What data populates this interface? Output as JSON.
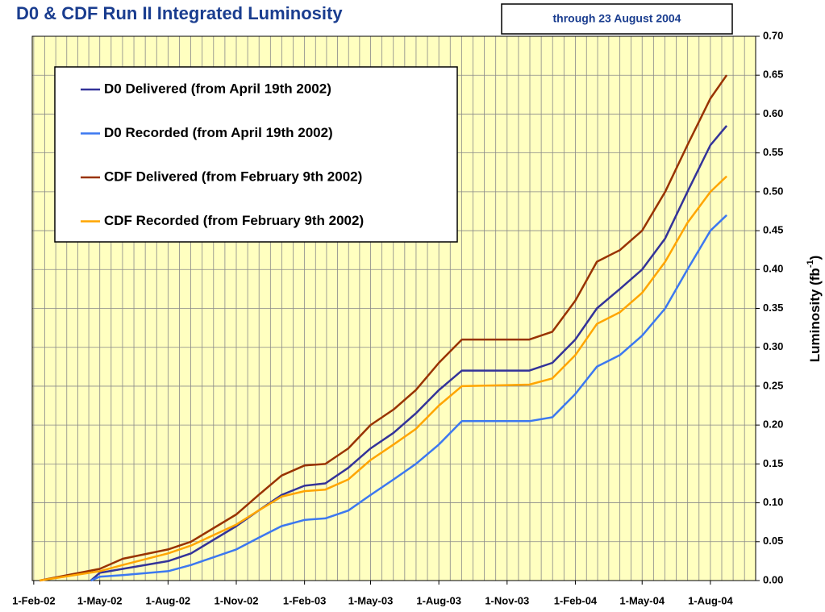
{
  "chart_data": {
    "type": "line",
    "title": "D0 & CDF Run II Integrated Luminosity",
    "annotation": "through 23 August 2004",
    "ylabel": [
      "Luminosity (fb",
      "-1",
      ")"
    ],
    "xlim": [
      "2002-01-30",
      "2004-10-01"
    ],
    "ylim": [
      0,
      0.7
    ],
    "xticks": [
      {
        "value": "2002-02-01",
        "label": "1-Feb-02"
      },
      {
        "value": "2002-05-01",
        "label": "1-May-02"
      },
      {
        "value": "2002-08-01",
        "label": "1-Aug-02"
      },
      {
        "value": "2002-11-01",
        "label": "1-Nov-02"
      },
      {
        "value": "2003-02-01",
        "label": "1-Feb-03"
      },
      {
        "value": "2003-05-01",
        "label": "1-May-03"
      },
      {
        "value": "2003-08-01",
        "label": "1-Aug-03"
      },
      {
        "value": "2003-11-01",
        "label": "1-Nov-03"
      },
      {
        "value": "2004-02-01",
        "label": "1-Feb-04"
      },
      {
        "value": "2004-05-01",
        "label": "1-May-04"
      },
      {
        "value": "2004-08-01",
        "label": "1-Aug-04"
      }
    ],
    "yticks": [
      {
        "value": 0,
        "label": "0.00"
      },
      {
        "value": 0.05,
        "label": "0.05"
      },
      {
        "value": 0.1,
        "label": "0.10"
      },
      {
        "value": 0.15,
        "label": "0.15"
      },
      {
        "value": 0.2,
        "label": "0.20"
      },
      {
        "value": 0.25,
        "label": "0.25"
      },
      {
        "value": 0.3,
        "label": "0.30"
      },
      {
        "value": 0.35,
        "label": "0.35"
      },
      {
        "value": 0.4,
        "label": "0.40"
      },
      {
        "value": 0.45,
        "label": "0.45"
      },
      {
        "value": 0.5,
        "label": "0.50"
      },
      {
        "value": 0.55,
        "label": "0.55"
      },
      {
        "value": 0.6,
        "label": "0.60"
      },
      {
        "value": 0.65,
        "label": "0.65"
      },
      {
        "value": 0.7,
        "label": "0.70"
      }
    ],
    "grid": true,
    "series": [
      {
        "name": "D0 Delivered (from April 19th 2002)",
        "color": "#333399",
        "x": [
          "2002-04-19",
          "2002-05-01",
          "2002-06-01",
          "2002-08-01",
          "2002-09-01",
          "2002-11-01",
          "2002-12-01",
          "2003-01-01",
          "2003-02-01",
          "2003-03-01",
          "2003-04-01",
          "2003-05-01",
          "2003-06-01",
          "2003-07-01",
          "2003-08-01",
          "2003-09-01",
          "2003-12-01",
          "2004-01-01",
          "2004-02-01",
          "2004-03-01",
          "2004-04-01",
          "2004-05-01",
          "2004-06-01",
          "2004-07-01",
          "2004-08-01",
          "2004-08-23"
        ],
        "values": [
          0,
          0.01,
          0.015,
          0.025,
          0.035,
          0.07,
          0.09,
          0.11,
          0.122,
          0.125,
          0.145,
          0.17,
          0.19,
          0.215,
          0.245,
          0.27,
          0.27,
          0.28,
          0.31,
          0.35,
          0.375,
          0.4,
          0.44,
          0.5,
          0.56,
          0.585
        ]
      },
      {
        "name": "D0 Recorded (from April 19th 2002)",
        "color": "#3c78f0",
        "x": [
          "2002-04-19",
          "2002-05-01",
          "2002-06-01",
          "2002-08-01",
          "2002-09-01",
          "2002-11-01",
          "2002-12-01",
          "2003-01-01",
          "2003-02-01",
          "2003-03-01",
          "2003-04-01",
          "2003-05-01",
          "2003-06-01",
          "2003-07-01",
          "2003-08-01",
          "2003-09-01",
          "2003-12-01",
          "2004-01-01",
          "2004-02-01",
          "2004-03-01",
          "2004-04-01",
          "2004-05-01",
          "2004-06-01",
          "2004-07-01",
          "2004-08-01",
          "2004-08-23"
        ],
        "values": [
          0,
          0.005,
          0.007,
          0.012,
          0.02,
          0.04,
          0.055,
          0.07,
          0.078,
          0.08,
          0.09,
          0.11,
          0.13,
          0.15,
          0.175,
          0.205,
          0.205,
          0.21,
          0.24,
          0.275,
          0.29,
          0.315,
          0.35,
          0.4,
          0.45,
          0.47
        ]
      },
      {
        "name": "CDF Delivered (from February 9th 2002)",
        "color": "#993300",
        "x": [
          "2002-02-09",
          "2002-05-01",
          "2002-06-01",
          "2002-08-01",
          "2002-09-01",
          "2002-11-01",
          "2002-12-01",
          "2003-01-01",
          "2003-02-01",
          "2003-03-01",
          "2003-04-01",
          "2003-05-01",
          "2003-06-01",
          "2003-07-01",
          "2003-08-01",
          "2003-09-01",
          "2003-12-01",
          "2004-01-01",
          "2004-02-01",
          "2004-03-01",
          "2004-04-01",
          "2004-05-01",
          "2004-06-01",
          "2004-07-01",
          "2004-08-01",
          "2004-08-23"
        ],
        "values": [
          0,
          0.015,
          0.028,
          0.04,
          0.05,
          0.085,
          0.11,
          0.135,
          0.148,
          0.15,
          0.17,
          0.2,
          0.22,
          0.245,
          0.28,
          0.31,
          0.31,
          0.32,
          0.36,
          0.41,
          0.425,
          0.45,
          0.5,
          0.56,
          0.62,
          0.65
        ]
      },
      {
        "name": "CDF Recorded (from February 9th 2002)",
        "color": "#ffa500",
        "x": [
          "2002-02-09",
          "2002-05-01",
          "2002-06-01",
          "2002-08-01",
          "2002-09-01",
          "2002-11-01",
          "2002-12-01",
          "2003-01-01",
          "2003-02-01",
          "2003-03-01",
          "2003-04-01",
          "2003-05-01",
          "2003-06-01",
          "2003-07-01",
          "2003-08-01",
          "2003-09-01",
          "2003-12-01",
          "2004-01-01",
          "2004-02-01",
          "2004-03-01",
          "2004-04-01",
          "2004-05-01",
          "2004-06-01",
          "2004-07-01",
          "2004-08-01",
          "2004-08-23"
        ],
        "values": [
          0,
          0.012,
          0.02,
          0.035,
          0.045,
          0.072,
          0.09,
          0.108,
          0.115,
          0.117,
          0.13,
          0.155,
          0.175,
          0.195,
          0.225,
          0.25,
          0.252,
          0.26,
          0.29,
          0.33,
          0.345,
          0.37,
          0.41,
          0.46,
          0.5,
          0.52
        ]
      }
    ]
  }
}
